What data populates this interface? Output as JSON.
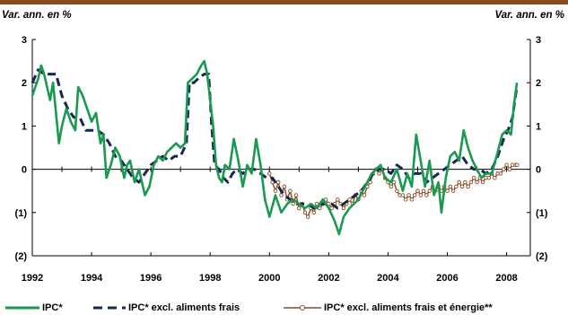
{
  "chart_data": {
    "type": "line",
    "y_unit_label_left": "Var. ann. en %",
    "y_unit_label_right": "Var. ann. en %",
    "xlim": [
      1992,
      2008.8
    ],
    "ylim": [
      -2,
      3
    ],
    "x_ticks": [
      {
        "value": 1992,
        "label": "1992"
      },
      {
        "value": 1994,
        "label": "1994"
      },
      {
        "value": 1996,
        "label": "1996"
      },
      {
        "value": 1998,
        "label": "1998"
      },
      {
        "value": 2000,
        "label": "2000"
      },
      {
        "value": 2002,
        "label": "2002"
      },
      {
        "value": 2004,
        "label": "2004"
      },
      {
        "value": 2006,
        "label": "2006"
      },
      {
        "value": 2008,
        "label": "2008"
      }
    ],
    "y_ticks": [
      {
        "value": 3,
        "label": "3"
      },
      {
        "value": 2,
        "label": "2"
      },
      {
        "value": 1,
        "label": "1"
      },
      {
        "value": 0,
        "label": "0"
      },
      {
        "value": -1,
        "label": "(1)"
      },
      {
        "value": -2,
        "label": "(2)"
      }
    ],
    "grid": false,
    "legend_position": "bottom",
    "series": [
      {
        "name": "IPC*",
        "color": "#1a9a50",
        "style": "solid",
        "points": [
          [
            1992.0,
            1.7
          ],
          [
            1992.1,
            1.9
          ],
          [
            1992.2,
            2.1
          ],
          [
            1992.3,
            2.4
          ],
          [
            1992.4,
            2.2
          ],
          [
            1992.5,
            1.9
          ],
          [
            1992.6,
            1.6
          ],
          [
            1992.7,
            2.0
          ],
          [
            1992.8,
            1.3
          ],
          [
            1992.9,
            0.6
          ],
          [
            1993.0,
            1.0
          ],
          [
            1993.15,
            1.4
          ],
          [
            1993.3,
            1.1
          ],
          [
            1993.45,
            0.9
          ],
          [
            1993.55,
            1.9
          ],
          [
            1993.7,
            1.7
          ],
          [
            1993.85,
            1.4
          ],
          [
            1994.0,
            1.1
          ],
          [
            1994.15,
            1.3
          ],
          [
            1994.3,
            0.6
          ],
          [
            1994.4,
            0.8
          ],
          [
            1994.5,
            -0.2
          ],
          [
            1994.65,
            0.1
          ],
          [
            1994.8,
            0.5
          ],
          [
            1994.95,
            0.3
          ],
          [
            1995.1,
            -0.2
          ],
          [
            1995.2,
            0.1
          ],
          [
            1995.3,
            0.2
          ],
          [
            1995.45,
            -0.3
          ],
          [
            1995.6,
            0.0
          ],
          [
            1995.7,
            -0.3
          ],
          [
            1995.8,
            -0.6
          ],
          [
            1995.95,
            -0.4
          ],
          [
            1996.1,
            0.1
          ],
          [
            1996.25,
            0.3
          ],
          [
            1996.4,
            0.2
          ],
          [
            1996.55,
            0.4
          ],
          [
            1996.7,
            0.5
          ],
          [
            1996.85,
            0.6
          ],
          [
            1997.0,
            0.5
          ],
          [
            1997.15,
            0.6
          ],
          [
            1997.25,
            2.0
          ],
          [
            1997.4,
            2.1
          ],
          [
            1997.55,
            2.2
          ],
          [
            1997.7,
            2.4
          ],
          [
            1997.8,
            2.5
          ],
          [
            1997.9,
            2.2
          ],
          [
            1998.0,
            1.6
          ],
          [
            1998.1,
            1.0
          ],
          [
            1998.2,
            0.1
          ],
          [
            1998.3,
            -0.2
          ],
          [
            1998.4,
            -0.3
          ],
          [
            1998.5,
            0.1
          ],
          [
            1998.65,
            0.0
          ],
          [
            1998.8,
            0.7
          ],
          [
            1998.95,
            0.2
          ],
          [
            1999.1,
            -0.4
          ],
          [
            1999.25,
            0.1
          ],
          [
            1999.4,
            -0.1
          ],
          [
            1999.55,
            0.7
          ],
          [
            1999.7,
            0.1
          ],
          [
            1999.85,
            -0.7
          ],
          [
            2000.0,
            -1.1
          ],
          [
            2000.2,
            -0.6
          ],
          [
            2000.4,
            -1.0
          ],
          [
            2000.6,
            -0.8
          ],
          [
            2000.8,
            -0.7
          ],
          [
            2001.0,
            -0.8
          ],
          [
            2001.2,
            -0.9
          ],
          [
            2001.4,
            -0.8
          ],
          [
            2001.6,
            -0.9
          ],
          [
            2001.8,
            -0.7
          ],
          [
            2002.0,
            -0.9
          ],
          [
            2002.2,
            -1.2
          ],
          [
            2002.35,
            -1.5
          ],
          [
            2002.5,
            -1.1
          ],
          [
            2002.7,
            -0.9
          ],
          [
            2002.85,
            -0.8
          ],
          [
            2003.0,
            -0.7
          ],
          [
            2003.15,
            -0.5
          ],
          [
            2003.3,
            -0.3
          ],
          [
            2003.45,
            -0.1
          ],
          [
            2003.6,
            0.0
          ],
          [
            2003.75,
            0.1
          ],
          [
            2003.9,
            -0.2
          ],
          [
            2004.1,
            -0.3
          ],
          [
            2004.3,
            0.0
          ],
          [
            2004.5,
            -0.5
          ],
          [
            2004.65,
            -0.1
          ],
          [
            2004.8,
            -0.4
          ],
          [
            2004.95,
            0.8
          ],
          [
            2005.1,
            0.2
          ],
          [
            2005.25,
            -0.4
          ],
          [
            2005.4,
            0.2
          ],
          [
            2005.55,
            -0.6
          ],
          [
            2005.7,
            -0.3
          ],
          [
            2005.8,
            -1.0
          ],
          [
            2005.95,
            -0.2
          ],
          [
            2006.1,
            0.3
          ],
          [
            2006.25,
            0.4
          ],
          [
            2006.4,
            0.2
          ],
          [
            2006.55,
            0.9
          ],
          [
            2006.7,
            0.5
          ],
          [
            2006.85,
            0.2
          ],
          [
            2007.0,
            0.0
          ],
          [
            2007.15,
            -0.2
          ],
          [
            2007.3,
            -0.1
          ],
          [
            2007.5,
            -0.1
          ],
          [
            2007.7,
            0.4
          ],
          [
            2007.85,
            0.8
          ],
          [
            2008.0,
            0.9
          ],
          [
            2008.15,
            0.8
          ],
          [
            2008.25,
            1.5
          ],
          [
            2008.35,
            2.0
          ]
        ]
      },
      {
        "name": "IPC* excl. aliments frais",
        "color": "#142850",
        "style": "dashed",
        "points": [
          [
            1992.0,
            2.0
          ],
          [
            1992.2,
            2.3
          ],
          [
            1992.4,
            2.2
          ],
          [
            1992.6,
            2.2
          ],
          [
            1992.8,
            2.2
          ],
          [
            1993.0,
            1.7
          ],
          [
            1993.2,
            1.4
          ],
          [
            1993.4,
            1.2
          ],
          [
            1993.6,
            1.2
          ],
          [
            1993.8,
            0.9
          ],
          [
            1994.0,
            0.9
          ],
          [
            1994.2,
            0.9
          ],
          [
            1994.4,
            0.8
          ],
          [
            1994.6,
            0.6
          ],
          [
            1994.8,
            0.3
          ],
          [
            1995.0,
            0.2
          ],
          [
            1995.2,
            0.0
          ],
          [
            1995.4,
            -0.2
          ],
          [
            1995.6,
            -0.3
          ],
          [
            1995.8,
            -0.1
          ],
          [
            1996.0,
            0.1
          ],
          [
            1996.2,
            0.2
          ],
          [
            1996.4,
            0.3
          ],
          [
            1996.6,
            0.2
          ],
          [
            1996.8,
            0.3
          ],
          [
            1997.0,
            0.3
          ],
          [
            1997.2,
            0.6
          ],
          [
            1997.3,
            2.0
          ],
          [
            1997.45,
            2.0
          ],
          [
            1997.6,
            2.1
          ],
          [
            1997.8,
            2.2
          ],
          [
            1997.95,
            2.2
          ],
          [
            1998.05,
            1.0
          ],
          [
            1998.15,
            0.1
          ],
          [
            1998.3,
            0.0
          ],
          [
            1998.45,
            -0.2
          ],
          [
            1998.6,
            -0.3
          ],
          [
            1998.75,
            -0.1
          ],
          [
            1998.9,
            0.0
          ],
          [
            1999.1,
            -0.1
          ],
          [
            1999.3,
            0.0
          ],
          [
            1999.5,
            0.0
          ],
          [
            1999.7,
            -0.1
          ],
          [
            1999.9,
            -0.2
          ],
          [
            2000.1,
            -0.2
          ],
          [
            2000.3,
            -0.4
          ],
          [
            2000.5,
            -0.6
          ],
          [
            2000.7,
            -0.7
          ],
          [
            2000.9,
            -0.8
          ],
          [
            2001.1,
            -0.8
          ],
          [
            2001.3,
            -0.8
          ],
          [
            2001.5,
            -0.9
          ],
          [
            2001.7,
            -0.8
          ],
          [
            2001.9,
            -0.8
          ],
          [
            2002.1,
            -0.8
          ],
          [
            2002.3,
            -0.9
          ],
          [
            2002.5,
            -0.8
          ],
          [
            2002.7,
            -0.7
          ],
          [
            2002.9,
            -0.6
          ],
          [
            2003.1,
            -0.5
          ],
          [
            2003.3,
            -0.3
          ],
          [
            2003.5,
            -0.1
          ],
          [
            2003.7,
            0.0
          ],
          [
            2003.9,
            0.0
          ],
          [
            2004.1,
            -0.1
          ],
          [
            2004.3,
            0.1
          ],
          [
            2004.5,
            0.0
          ],
          [
            2004.7,
            -0.2
          ],
          [
            2004.9,
            -0.1
          ],
          [
            2005.1,
            -0.1
          ],
          [
            2005.3,
            -0.3
          ],
          [
            2005.5,
            -0.2
          ],
          [
            2005.7,
            -0.1
          ],
          [
            2005.9,
            0.0
          ],
          [
            2006.1,
            0.1
          ],
          [
            2006.3,
            0.2
          ],
          [
            2006.5,
            0.3
          ],
          [
            2006.7,
            0.1
          ],
          [
            2006.9,
            0.0
          ],
          [
            2007.1,
            0.0
          ],
          [
            2007.3,
            -0.1
          ],
          [
            2007.5,
            0.0
          ],
          [
            2007.7,
            0.3
          ],
          [
            2007.9,
            0.7
          ],
          [
            2008.05,
            0.9
          ],
          [
            2008.2,
            1.2
          ],
          [
            2008.3,
            1.7
          ],
          [
            2008.35,
            1.9
          ]
        ]
      },
      {
        "name": "IPC* excl. aliments frais et énergie**",
        "color": "#8a4a22",
        "style": "solid-markers",
        "points": [
          [
            2000.0,
            -0.1
          ],
          [
            2000.1,
            -0.3
          ],
          [
            2000.2,
            -0.5
          ],
          [
            2000.3,
            -0.3
          ],
          [
            2000.4,
            -0.6
          ],
          [
            2000.5,
            -0.4
          ],
          [
            2000.6,
            -0.7
          ],
          [
            2000.7,
            -0.5
          ],
          [
            2000.8,
            -0.8
          ],
          [
            2000.9,
            -0.6
          ],
          [
            2001.0,
            -0.9
          ],
          [
            2001.1,
            -0.8
          ],
          [
            2001.2,
            -1.0
          ],
          [
            2001.3,
            -1.1
          ],
          [
            2001.4,
            -0.9
          ],
          [
            2001.5,
            -1.0
          ],
          [
            2001.6,
            -0.8
          ],
          [
            2001.7,
            -0.9
          ],
          [
            2001.8,
            -0.8
          ],
          [
            2001.9,
            -0.7
          ],
          [
            2002.0,
            -0.8
          ],
          [
            2002.1,
            -0.9
          ],
          [
            2002.2,
            -0.8
          ],
          [
            2002.3,
            -0.7
          ],
          [
            2002.4,
            -0.8
          ],
          [
            2002.5,
            -0.9
          ],
          [
            2002.6,
            -0.8
          ],
          [
            2002.7,
            -0.7
          ],
          [
            2002.8,
            -0.8
          ],
          [
            2002.9,
            -0.6
          ],
          [
            2003.0,
            -0.7
          ],
          [
            2003.1,
            -0.5
          ],
          [
            2003.2,
            -0.6
          ],
          [
            2003.3,
            -0.4
          ],
          [
            2003.4,
            -0.3
          ],
          [
            2003.5,
            -0.1
          ],
          [
            2003.6,
            0.0
          ],
          [
            2003.7,
            -0.1
          ],
          [
            2003.8,
            0.0
          ],
          [
            2003.9,
            -0.2
          ],
          [
            2004.0,
            -0.3
          ],
          [
            2004.1,
            -0.4
          ],
          [
            2004.2,
            -0.3
          ],
          [
            2004.3,
            -0.5
          ],
          [
            2004.4,
            -0.6
          ],
          [
            2004.5,
            -0.6
          ],
          [
            2004.6,
            -0.7
          ],
          [
            2004.7,
            -0.6
          ],
          [
            2004.8,
            -0.7
          ],
          [
            2004.9,
            -0.6
          ],
          [
            2005.0,
            -0.5
          ],
          [
            2005.1,
            -0.6
          ],
          [
            2005.2,
            -0.5
          ],
          [
            2005.3,
            -0.6
          ],
          [
            2005.4,
            -0.5
          ],
          [
            2005.5,
            -0.4
          ],
          [
            2005.6,
            -0.5
          ],
          [
            2005.7,
            -0.4
          ],
          [
            2005.8,
            -0.5
          ],
          [
            2005.9,
            -0.4
          ],
          [
            2006.0,
            -0.5
          ],
          [
            2006.1,
            -0.4
          ],
          [
            2006.2,
            -0.5
          ],
          [
            2006.3,
            -0.4
          ],
          [
            2006.4,
            -0.3
          ],
          [
            2006.5,
            -0.4
          ],
          [
            2006.6,
            -0.3
          ],
          [
            2006.7,
            -0.4
          ],
          [
            2006.8,
            -0.3
          ],
          [
            2006.9,
            -0.2
          ],
          [
            2007.0,
            -0.3
          ],
          [
            2007.1,
            -0.2
          ],
          [
            2007.2,
            -0.3
          ],
          [
            2007.3,
            -0.2
          ],
          [
            2007.4,
            -0.2
          ],
          [
            2007.5,
            -0.1
          ],
          [
            2007.6,
            -0.2
          ],
          [
            2007.7,
            -0.1
          ],
          [
            2007.8,
            -0.1
          ],
          [
            2007.9,
            0.0
          ],
          [
            2008.0,
            0.1
          ],
          [
            2008.1,
            0.0
          ],
          [
            2008.2,
            0.1
          ],
          [
            2008.3,
            0.1
          ],
          [
            2008.35,
            0.1
          ]
        ]
      }
    ]
  },
  "legend": {
    "item1": "IPC*",
    "item2": "IPC* excl. aliments frais",
    "item3": "IPC* excl. aliments frais et énergie**"
  },
  "colors": {
    "top_bar": "#8a4a22",
    "axis": "#000000"
  }
}
